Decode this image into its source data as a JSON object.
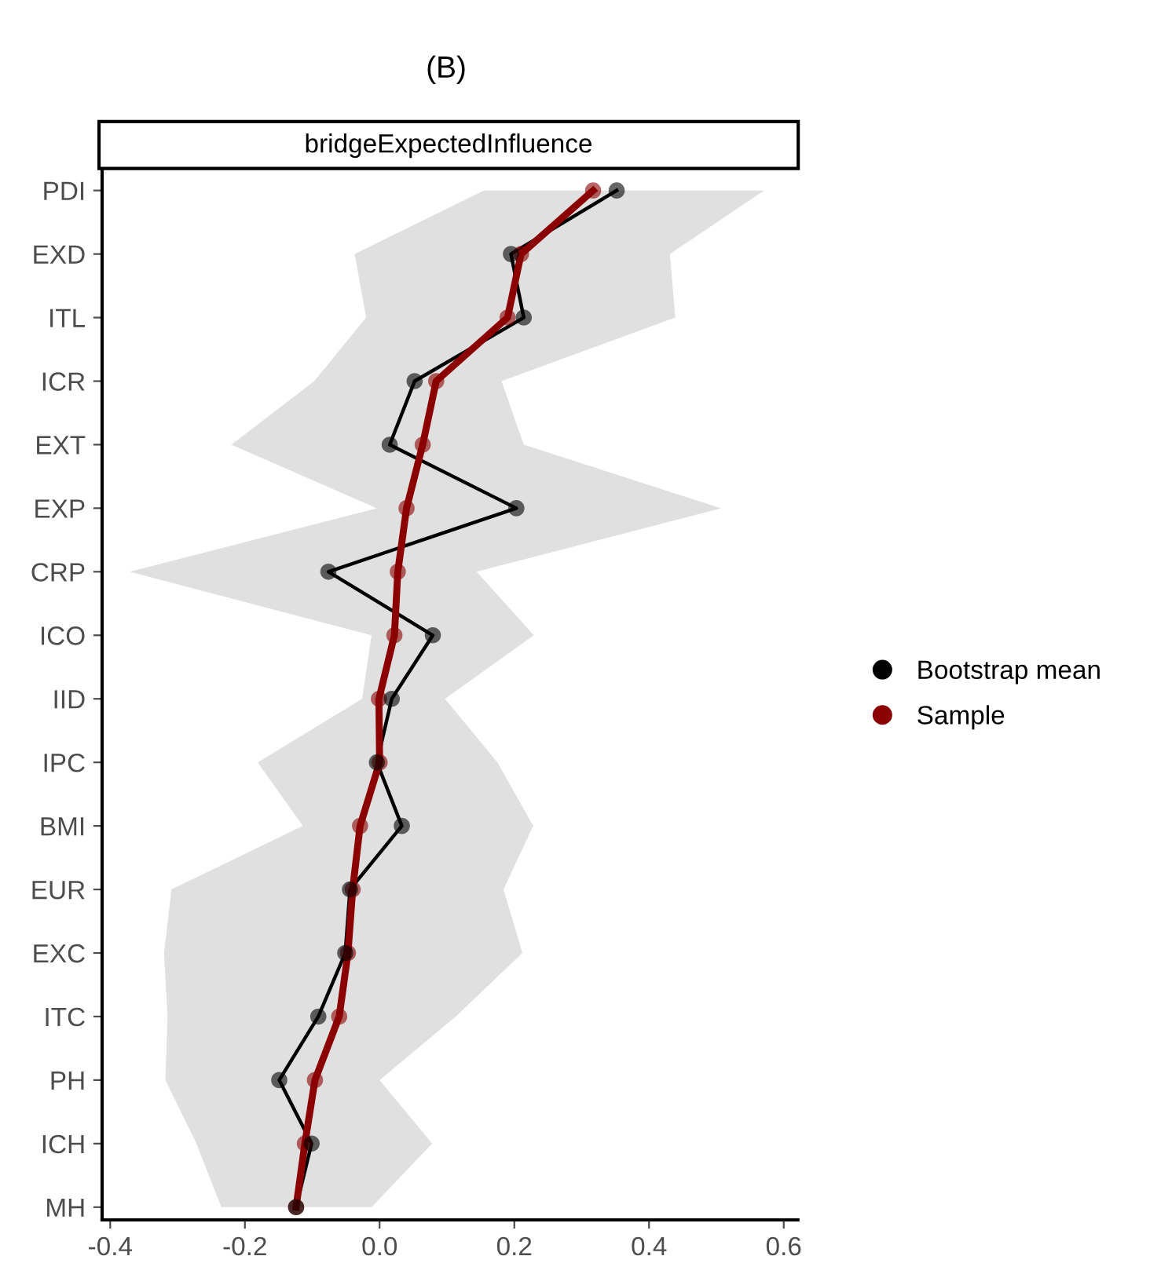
{
  "chart_data": {
    "type": "line",
    "orientation": "horizontal",
    "title": "(B)",
    "subtitle": "bridgeExpectedInfluence",
    "categories": [
      "PDI",
      "EXD",
      "ITL",
      "ICR",
      "EXT",
      "EXP",
      "CRP",
      "ICO",
      "IID",
      "IPC",
      "BMI",
      "EUR",
      "EXC",
      "ITC",
      "PH",
      "ICH",
      "MH"
    ],
    "series": [
      {
        "name": "Bootstrap mean",
        "color": "#000000",
        "values": [
          0.352,
          0.195,
          0.214,
          0.052,
          0.015,
          0.203,
          -0.076,
          0.079,
          0.018,
          -0.004,
          0.033,
          -0.044,
          -0.051,
          -0.091,
          -0.149,
          -0.101,
          -0.124
        ],
        "lower": [
          0.155,
          -0.037,
          -0.02,
          -0.097,
          -0.22,
          -0.004,
          -0.371,
          -0.012,
          -0.026,
          -0.181,
          -0.114,
          -0.309,
          -0.32,
          -0.315,
          -0.318,
          -0.272,
          -0.235
        ],
        "upper": [
          0.571,
          0.431,
          0.439,
          0.181,
          0.214,
          0.507,
          0.144,
          0.229,
          0.097,
          0.175,
          0.228,
          0.184,
          0.212,
          0.113,
          0.0,
          0.078,
          -0.012
        ]
      },
      {
        "name": "Sample",
        "color": "#8b0000",
        "values": [
          0.317,
          0.21,
          0.19,
          0.084,
          0.064,
          0.04,
          0.027,
          0.022,
          -0.001,
          0.0,
          -0.029,
          -0.04,
          -0.047,
          -0.06,
          -0.096,
          -0.111,
          -0.124
        ]
      }
    ],
    "xlim": [
      -0.412,
      0.621
    ],
    "xticks": [
      {
        "value": -0.4,
        "label": "-0.4"
      },
      {
        "value": -0.2,
        "label": "-0.2"
      },
      {
        "value": 0.0,
        "label": "0.0"
      },
      {
        "value": 0.2,
        "label": "0.2"
      },
      {
        "value": 0.4,
        "label": "0.4"
      },
      {
        "value": 0.6,
        "label": "0.6"
      }
    ],
    "marker": "circle",
    "line_style": "solid",
    "grid": false,
    "legend": "right"
  }
}
